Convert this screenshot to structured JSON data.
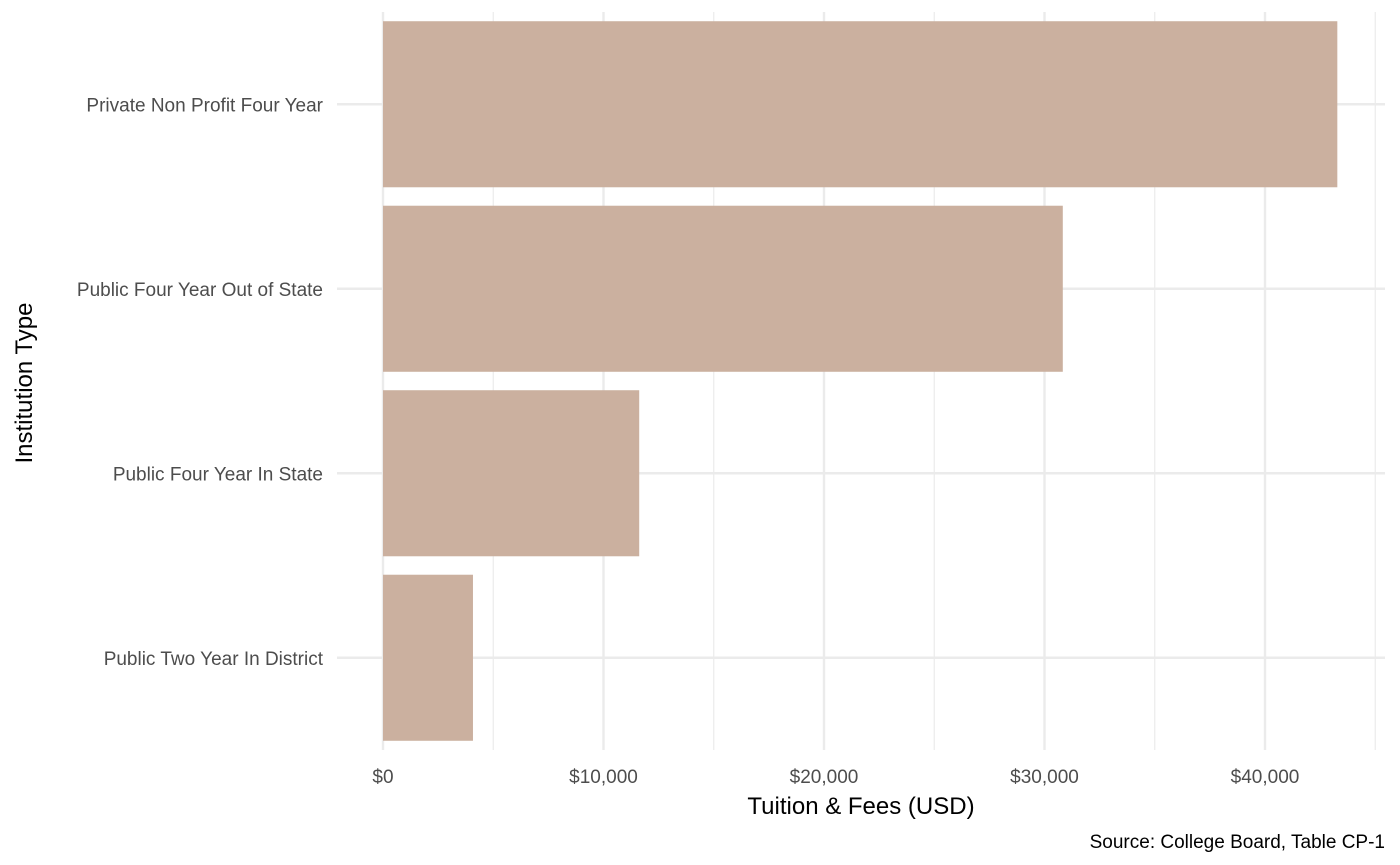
{
  "chart_data": {
    "type": "bar",
    "orientation": "horizontal",
    "categories": [
      "Private Non Profit Four Year",
      "Public Four Year Out of State",
      "Public Four Year In State",
      "Public Two Year In District"
    ],
    "values": [
      43280,
      30830,
      11620,
      4080
    ],
    "xlabel": "Tuition & Fees (USD)",
    "ylabel": "Institution Type",
    "xlim": [
      0,
      45500
    ],
    "x_ticks": [
      0,
      10000,
      20000,
      30000,
      40000
    ],
    "x_tick_labels": [
      "$0",
      "$10,000",
      "$20,000",
      "$30,000",
      "$40,000"
    ],
    "caption": "Source: College Board, Table CP-1",
    "grid": true,
    "legend": "none",
    "bar_color": "#CBB09F",
    "grid_color": "#EBEBEB"
  }
}
